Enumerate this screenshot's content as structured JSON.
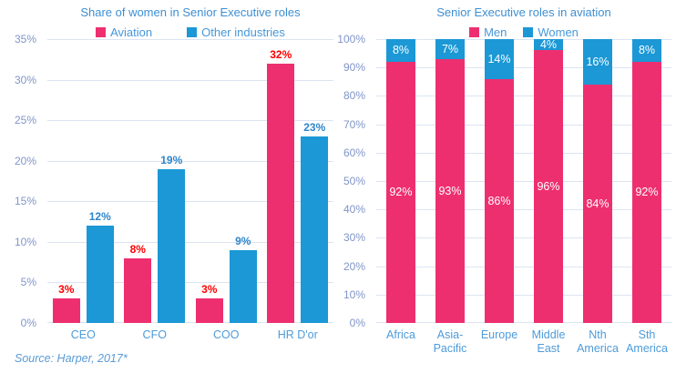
{
  "colors": {
    "aviation_pink": "#EE2F6F",
    "industry_blue": "#1B98D5",
    "title_text": "#3E8FD3",
    "legend_text": "#4697DA",
    "tick_text": "#8095C9",
    "category_text": "#4E9BD9",
    "gridline": "#DCE4F2",
    "source_text": "#5B9BD5",
    "label_red": "#FF0000",
    "label_blue": "#2F86CA",
    "label_white": "#FFFFFF"
  },
  "chart_data": [
    {
      "type": "bar",
      "stacked": false,
      "title": "Share of women in Senior Executive roles",
      "categories": [
        "CEO",
        "CFO",
        "COO",
        "HR D'or"
      ],
      "series": [
        {
          "name": "Aviation",
          "values": [
            3,
            8,
            3,
            32
          ],
          "color": "#EE2F6F",
          "label_color": "#FF0000"
        },
        {
          "name": "Other industries",
          "values": [
            12,
            19,
            9,
            23
          ],
          "color": "#1B98D5",
          "label_color": "#2F86CA"
        }
      ],
      "value_labels": [
        [
          "3%",
          "8%",
          "3%",
          "32%"
        ],
        [
          "12%",
          "19%",
          "9%",
          "23%"
        ]
      ],
      "xlabel": "",
      "ylabel": "",
      "ylim": [
        0,
        35
      ],
      "yticks": [
        0,
        5,
        10,
        15,
        20,
        25,
        30,
        35
      ],
      "ytick_labels": [
        "0%",
        "5%",
        "10%",
        "15%",
        "20%",
        "25%",
        "30%",
        "35%"
      ],
      "grid": true,
      "legend_position": "top",
      "source": "Source: Harper, 2017*"
    },
    {
      "type": "bar",
      "stacked": true,
      "title": "Senior Executive roles in aviation",
      "categories": [
        "Africa",
        "Asia-Pacific",
        "Europe",
        "Middle East",
        "Nth America",
        "Sth America"
      ],
      "category_lines": [
        [
          "Africa"
        ],
        [
          "Asia-",
          "Pacific"
        ],
        [
          "Europe"
        ],
        [
          "Middle",
          "East"
        ],
        [
          "Nth",
          "America"
        ],
        [
          "Sth",
          "America"
        ]
      ],
      "series": [
        {
          "name": "Men",
          "values": [
            92,
            93,
            86,
            96,
            84,
            92
          ],
          "color": "#EE2F6F",
          "label_color": "#FFFFFF"
        },
        {
          "name": "Women",
          "values": [
            8,
            7,
            14,
            4,
            16,
            8
          ],
          "color": "#1B98D5",
          "label_color": "#FFFFFF"
        }
      ],
      "value_labels": [
        [
          "92%",
          "93%",
          "86%",
          "96%",
          "84%",
          "92%"
        ],
        [
          "8%",
          "7%",
          "14%",
          "4%",
          "16%",
          "8%"
        ]
      ],
      "xlabel": "",
      "ylabel": "",
      "ylim": [
        0,
        100
      ],
      "yticks": [
        0,
        10,
        20,
        30,
        40,
        50,
        60,
        70,
        80,
        90,
        100
      ],
      "ytick_labels": [
        "0%",
        "10%",
        "20%",
        "30%",
        "40%",
        "50%",
        "60%",
        "70%",
        "80%",
        "90%",
        "100%"
      ],
      "grid": true,
      "legend_position": "top"
    }
  ]
}
